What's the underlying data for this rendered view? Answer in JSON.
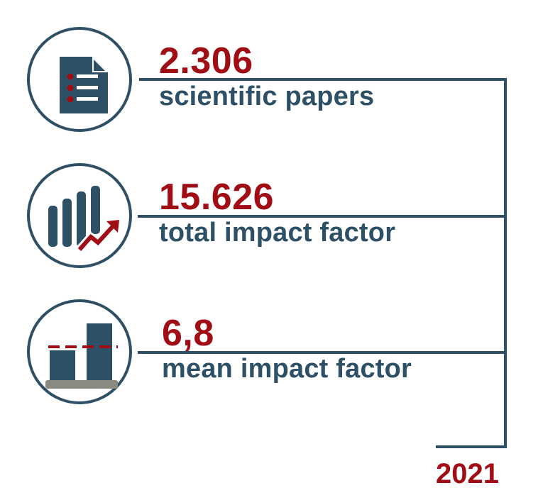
{
  "colors": {
    "navy": "#2e5066",
    "red": "#a00d14",
    "gray": "#8a8a80"
  },
  "stats": [
    {
      "value": "2.306",
      "label": "scientific papers",
      "icon": "document-list-icon"
    },
    {
      "value": "15.626",
      "label": "total impact factor",
      "icon": "bar-chart-trend-icon"
    },
    {
      "value": "6,8",
      "label": "mean impact factor",
      "icon": "bar-average-icon"
    }
  ],
  "year": "2021"
}
